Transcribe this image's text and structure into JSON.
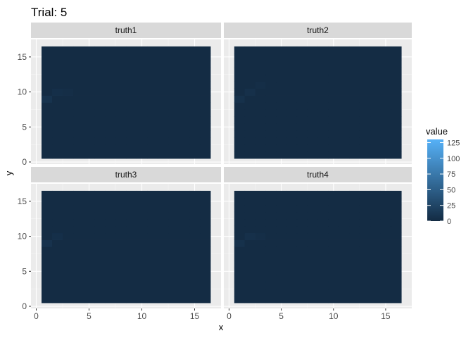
{
  "chart_data": {
    "type": "heatmap",
    "title": "Trial: 5",
    "xlabel": "x",
    "ylabel": "y",
    "xlim": [
      -0.5,
      17.5
    ],
    "ylim": [
      -0.3,
      17.5
    ],
    "x_ticks": [
      0,
      5,
      10,
      15
    ],
    "y_ticks": [
      0,
      5,
      10,
      15
    ],
    "grid": true,
    "legend_position": "right",
    "legend": {
      "title": "value",
      "min": 0,
      "max": 130,
      "ticks": [
        0,
        25,
        50,
        75,
        100,
        125
      ],
      "low_color": "#132B43",
      "high_color": "#56B1F7"
    },
    "grid_size": [
      16,
      16
    ],
    "base_value": 1,
    "panels": [
      {
        "name": "truth1",
        "highlights": [
          {
            "x": 1,
            "y": 9,
            "value": 8
          },
          {
            "x": 2,
            "y": 10,
            "value": 4
          },
          {
            "x": 3,
            "y": 10,
            "value": 3
          }
        ]
      },
      {
        "name": "truth2",
        "highlights": [
          {
            "x": 1,
            "y": 9,
            "value": 6
          },
          {
            "x": 2,
            "y": 10,
            "value": 5
          },
          {
            "x": 3,
            "y": 11,
            "value": 3
          }
        ]
      },
      {
        "name": "truth3",
        "highlights": [
          {
            "x": 1,
            "y": 9,
            "value": 7
          },
          {
            "x": 2,
            "y": 10,
            "value": 4
          }
        ]
      },
      {
        "name": "truth4",
        "highlights": [
          {
            "x": 1,
            "y": 9,
            "value": 6
          },
          {
            "x": 2,
            "y": 10,
            "value": 5
          },
          {
            "x": 3,
            "y": 10,
            "value": 3
          }
        ]
      }
    ]
  }
}
